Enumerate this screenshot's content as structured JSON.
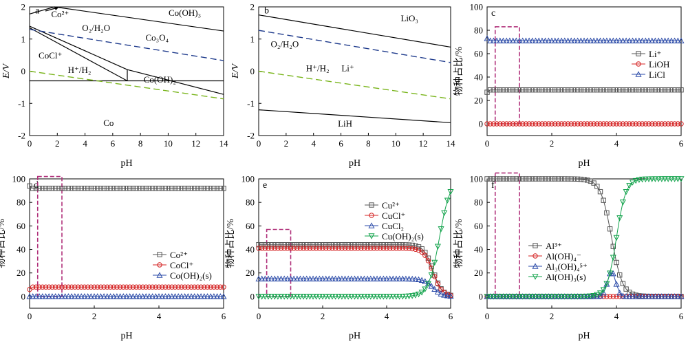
{
  "colors": {
    "black": "#000000",
    "navy": "#1f3b8c",
    "green": "#7ab51d",
    "grey_line": "#555555",
    "red": "#d42020",
    "blue": "#2a4aa8",
    "green_marker": "#10a24a",
    "magenta": "#b0307a"
  },
  "chart_data": [
    {
      "type": "line",
      "panel": "a",
      "xlabel": "pH",
      "ylabel": "E/V",
      "xlim": [
        0,
        14
      ],
      "ylim": [
        -2,
        2
      ],
      "xticks": [
        0,
        2,
        4,
        6,
        8,
        10,
        12,
        14
      ],
      "yticks": [
        -2,
        -1,
        0,
        1,
        2
      ],
      "series": [
        {
          "style": "solid",
          "color": "black",
          "x": [
            1.8,
            14
          ],
          "y": [
            2.0,
            1.25
          ]
        },
        {
          "style": "solid",
          "color": "black",
          "x": [
            0,
            1.8
          ],
          "y": [
            1.78,
            2.0
          ]
        },
        {
          "style": "solid",
          "color": "black",
          "x": [
            0,
            7.05
          ],
          "y": [
            1.4,
            0.05
          ]
        },
        {
          "style": "solid",
          "color": "black",
          "x": [
            7.05,
            14
          ],
          "y": [
            0.05,
            -0.72
          ]
        },
        {
          "style": "solid",
          "color": "black",
          "x": [
            7.05,
            14
          ],
          "y": [
            -0.3,
            -0.3
          ]
        },
        {
          "style": "solid",
          "color": "black",
          "x": [
            0,
            7.05
          ],
          "y": [
            -0.3,
            -0.3
          ]
        },
        {
          "style": "solid",
          "color": "black",
          "x": [
            7.05,
            7.05
          ],
          "y": [
            -0.3,
            0.05
          ]
        },
        {
          "style": "solid",
          "color": "black",
          "x": [
            0,
            7.05
          ],
          "y": [
            1.35,
            -0.3
          ]
        },
        {
          "style": "dashed",
          "color": "navy",
          "x": [
            0,
            14
          ],
          "y": [
            1.3,
            0.33
          ]
        },
        {
          "style": "dashed",
          "color": "green",
          "x": [
            0,
            14
          ],
          "y": [
            0.0,
            -0.86
          ]
        }
      ],
      "annotations": [
        {
          "text": "a",
          "x": 0.4,
          "y": 1.8
        },
        {
          "text": "Co²⁺",
          "x": 2.2,
          "y": 1.68
        },
        {
          "text": "Co(OH)₃",
          "x": 11.2,
          "y": 1.72
        },
        {
          "text": "O₂/H₂O",
          "x": 4.8,
          "y": 1.25
        },
        {
          "text": "Co₃O₄",
          "x": 9.2,
          "y": 0.95
        },
        {
          "text": "CoCl⁺",
          "x": 1.5,
          "y": 0.4
        },
        {
          "text": "H⁺/H₂",
          "x": 3.6,
          "y": -0.05
        },
        {
          "text": "Co(OH)₂",
          "x": 9.4,
          "y": -0.35
        },
        {
          "text": "Co",
          "x": 5.7,
          "y": -1.7
        }
      ]
    },
    {
      "type": "line",
      "panel": "b",
      "xlabel": "pH",
      "ylabel": "E/V",
      "xlim": [
        0,
        14
      ],
      "ylim": [
        -2,
        2
      ],
      "xticks": [
        0,
        2,
        4,
        6,
        8,
        10,
        12,
        14
      ],
      "yticks": [
        -2,
        -1,
        0,
        1,
        2
      ],
      "series": [
        {
          "style": "solid",
          "color": "black",
          "x": [
            0,
            14
          ],
          "y": [
            1.75,
            0.75
          ]
        },
        {
          "style": "solid",
          "color": "black",
          "x": [
            0,
            14
          ],
          "y": [
            -1.2,
            -1.6
          ]
        },
        {
          "style": "dashed",
          "color": "navy",
          "x": [
            0,
            14
          ],
          "y": [
            1.27,
            0.27
          ]
        },
        {
          "style": "dashed",
          "color": "green",
          "x": [
            0,
            14
          ],
          "y": [
            0.0,
            -0.86
          ]
        }
      ],
      "annotations": [
        {
          "text": "b",
          "x": 0.4,
          "y": 1.8
        },
        {
          "text": "LiO₃",
          "x": 11.0,
          "y": 1.55
        },
        {
          "text": "O₂/H₂O",
          "x": 1.9,
          "y": 0.75
        },
        {
          "text": "H⁺/H₂",
          "x": 4.3,
          "y": 0.0
        },
        {
          "text": "Li⁺",
          "x": 6.5,
          "y": 0.0
        },
        {
          "text": "LiH",
          "x": 6.3,
          "y": -1.72
        }
      ]
    },
    {
      "type": "scatter",
      "panel": "c",
      "xlabel": "pH",
      "ylabel": "物种占比/%",
      "xlim": [
        0,
        6
      ],
      "ylim": [
        -10,
        100
      ],
      "xticks": [
        0,
        2,
        4,
        6
      ],
      "yticks": [
        0,
        20,
        40,
        60,
        80,
        100
      ],
      "highlight": {
        "x": [
          0.25,
          1.0
        ],
        "y": [
          0,
          83
        ]
      },
      "legend": "right",
      "series": [
        {
          "name": "Li⁺",
          "marker": "square",
          "color": "grey_line",
          "kind": "const",
          "first": 27,
          "value": 29
        },
        {
          "name": "LiOH",
          "marker": "circle",
          "color": "red",
          "kind": "const",
          "value": 0
        },
        {
          "name": "LiCl",
          "marker": "triangle",
          "color": "blue",
          "kind": "const",
          "first": 73,
          "value": 71
        }
      ]
    },
    {
      "type": "scatter",
      "panel": "d",
      "xlabel": "pH",
      "ylabel": "物种占比/%",
      "xlim": [
        0,
        6
      ],
      "ylim": [
        -10,
        100
      ],
      "xticks": [
        0,
        2,
        4,
        6
      ],
      "yticks": [
        0,
        20,
        40,
        60,
        80,
        100
      ],
      "highlight": {
        "x": [
          0.25,
          1.0
        ],
        "y": [
          0,
          102
        ]
      },
      "legend": "lower right",
      "series": [
        {
          "name": "Co²⁺",
          "marker": "square",
          "color": "grey_line",
          "kind": "const",
          "first": 94,
          "value": 92
        },
        {
          "name": "CoCl⁺",
          "marker": "circle",
          "color": "red",
          "kind": "const",
          "first": 6,
          "value": 8
        },
        {
          "name": "Co(OH)₂(s)",
          "marker": "triangle",
          "color": "blue",
          "kind": "const",
          "value": 0
        }
      ]
    },
    {
      "type": "scatter",
      "panel": "e",
      "xlabel": "pH",
      "ylabel": "物种占比/%",
      "xlim": [
        0,
        6
      ],
      "ylim": [
        -10,
        100
      ],
      "xticks": [
        0,
        2,
        4,
        6
      ],
      "yticks": [
        0,
        20,
        40,
        60,
        80,
        100
      ],
      "highlight": {
        "x": [
          0.25,
          1.0
        ],
        "y": [
          0,
          57
        ]
      },
      "legend": "top right",
      "series": [
        {
          "name": "Cu²⁺",
          "marker": "square",
          "color": "grey_line",
          "kind": "drop",
          "value": 44,
          "mid": 5.45,
          "k": 7
        },
        {
          "name": "CuCl⁺",
          "marker": "circle",
          "color": "red",
          "kind": "drop",
          "value": 41,
          "mid": 5.45,
          "k": 7
        },
        {
          "name": "CuCl₂",
          "marker": "triangle",
          "color": "blue",
          "kind": "drop",
          "value": 15,
          "mid": 5.45,
          "k": 7
        },
        {
          "name": "Cu(OH)₂(s)",
          "marker": "triangle-down",
          "color": "green_marker",
          "kind": "rise",
          "value": 100,
          "mid": 5.65,
          "k": 6
        }
      ]
    },
    {
      "type": "scatter",
      "panel": "f",
      "xlabel": "pH",
      "ylabel": "物种占比/%",
      "xlim": [
        0,
        6
      ],
      "ylim": [
        -10,
        100
      ],
      "xticks": [
        0,
        2,
        4,
        6
      ],
      "yticks": [
        0,
        20,
        40,
        60,
        80,
        100
      ],
      "highlight": {
        "x": [
          0.25,
          1.0
        ],
        "y": [
          0,
          105
        ]
      },
      "legend": "lower left",
      "series": [
        {
          "name": "Al³⁺",
          "marker": "square",
          "color": "grey_line",
          "kind": "drop",
          "value": 100,
          "mid": 3.85,
          "k": 6
        },
        {
          "name": "Al(OH)₄⁻",
          "marker": "circle",
          "color": "red",
          "kind": "const",
          "value": 0
        },
        {
          "name": "Al₃(OH)₄⁵⁺",
          "marker": "triangle",
          "color": "blue",
          "kind": "bump",
          "value": 21,
          "mid": 3.85,
          "w": 0.18
        },
        {
          "name": "Al(OH)₃(s)",
          "marker": "triangle-down",
          "color": "green_marker",
          "kind": "rise",
          "value": 100,
          "mid": 4.0,
          "k": 7
        }
      ]
    }
  ]
}
